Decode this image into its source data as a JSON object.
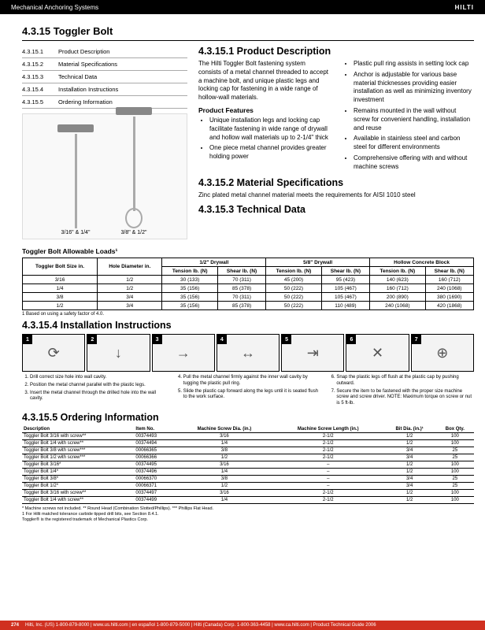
{
  "header": {
    "category": "Mechanical Anchoring Systems",
    "logo": "HILTI"
  },
  "page_title": "4.3.15 Toggler Bolt",
  "toc": [
    {
      "num": "4.3.15.1",
      "label": "Product Description"
    },
    {
      "num": "4.3.15.2",
      "label": "Material Specifications"
    },
    {
      "num": "4.3.15.3",
      "label": "Technical Data"
    },
    {
      "num": "4.3.15.4",
      "label": "Installation Instructions"
    },
    {
      "num": "4.3.15.5",
      "label": "Ordering Information"
    }
  ],
  "diagram": {
    "left": "3/16\" & 1/4\"",
    "right": "3/8\" & 1/2\""
  },
  "section1": {
    "title": "4.3.15.1 Product Description",
    "intro": "The Hilti Toggler Bolt fastening system consists of a metal channel threaded to accept a machine bolt, and unique plastic legs and locking cap for fastening in a wide range of hollow-wall materials.",
    "features_title": "Product Features",
    "left_features": [
      "Unique installation legs and locking cap facilitate fastening in wide range of drywall and hollow wall materials up to 2-1/4\" thick",
      "One piece metal channel provides greater holding power"
    ],
    "right_features": [
      "Plastic pull ring assists in setting lock cap",
      "Anchor is adjustable for various base material thicknesses providing easier installation as well as minimizing inventory investment",
      "Remains mounted in the wall without screw for convenient handling, installation and reuse",
      "Available in stainless steel and carbon steel for different environments",
      "Comprehensive offering with and without machine screws"
    ]
  },
  "section2": {
    "title": "4.3.15.2 Material Specifications",
    "text": "Zinc plated metal channel material meets the requirements for AISI 1010 steel"
  },
  "section3": {
    "title": "4.3.15.3 Technical Data",
    "table_title": "Toggler Bolt Allowable Loads¹",
    "headers": {
      "c1": "Toggler Bolt Size in.",
      "c2": "Hole Diameter in.",
      "g1": "1/2\" Drywall",
      "g2": "5/8\" Drywall",
      "g3": "Hollow Concrete Block",
      "t": "Tension lb. (N)",
      "s": "Shear lb. (N)"
    },
    "rows": [
      {
        "size": "3/16",
        "hole": "1/2",
        "d1t": "30 (133)",
        "d1s": "70 (311)",
        "d2t": "45 (200)",
        "d2s": "95 (423)",
        "ht": "140 (623)",
        "hs": "160 (712)"
      },
      {
        "size": "1/4",
        "hole": "1/2",
        "d1t": "35 (156)",
        "d1s": "85 (378)",
        "d2t": "50 (222)",
        "d2s": "105 (467)",
        "ht": "160 (712)",
        "hs": "240 (1068)"
      },
      {
        "size": "3/8",
        "hole": "3/4",
        "d1t": "35 (156)",
        "d1s": "70 (311)",
        "d2t": "50 (222)",
        "d2s": "105 (467)",
        "ht": "200 (890)",
        "hs": "380 (1690)"
      },
      {
        "size": "1/2",
        "hole": "3/4",
        "d1t": "35 (156)",
        "d1s": "85 (378)",
        "d2t": "50 (222)",
        "d2s": "110 (489)",
        "ht": "240 (1068)",
        "hs": "420 (1868)"
      }
    ],
    "footnote": "1  Based on using a safety factor of 4.0."
  },
  "section4": {
    "title": "4.3.15.4 Installation Instructions",
    "steps_left": [
      "Drill correct size hole into wall cavity.",
      "Position the metal channel parallel with the plastic legs.",
      "Insert the metal channel through the drilled hole into the wall cavity."
    ],
    "steps_mid": [
      "Pull the metal channel firmly against the inner wall cavity by tugging the plastic pull ring.",
      "Slide the plastic cap forward along the legs until it is seated flush to the work surface."
    ],
    "steps_right": [
      "Snap the plastic legs off flush at the plastic cap by pushing outward.",
      "Secure the item to be fastened with the proper size machine screw and screw driver. NOTE: Maximum torque on screw or nut is 5 ft-lb."
    ]
  },
  "section5": {
    "title": "4.3.15.5 Ordering Information",
    "headers": [
      "Description",
      "Item No.",
      "Machine Screw Dia. (in.)",
      "Machine Screw Length (in.)",
      "Bit Dia. (in.)¹",
      "Box Qty."
    ],
    "rows": [
      [
        "Toggler Bolt 3/16 with screw**",
        "00374493",
        "3/16",
        "2-1/2",
        "1/2",
        "100"
      ],
      [
        "Toggler Bolt 1/4 with screw**",
        "00374494",
        "1/4",
        "2-1/2",
        "1/2",
        "100"
      ],
      [
        "Toggler Bolt 3/8 with screw***",
        "00066365",
        "3/8",
        "2-1/2",
        "3/4",
        "25"
      ],
      [
        "Toggler Bolt 1/2 with screw***",
        "00066366",
        "1/2",
        "2-1/2",
        "3/4",
        "25"
      ],
      [
        "Toggler Bolt 3/16*",
        "00374495",
        "3/16",
        "–",
        "1/2",
        "100"
      ],
      [
        "Toggler Bolt 1/4*",
        "00374496",
        "1/4",
        "–",
        "1/2",
        "100"
      ],
      [
        "Toggler Bolt 3/8*",
        "00066370",
        "3/8",
        "–",
        "3/4",
        "25"
      ],
      [
        "Toggler Bolt 1/2*",
        "00066371",
        "1/2",
        "–",
        "3/4",
        "25"
      ],
      [
        "Toggler Bolt 3/16 with screw**",
        "00374497",
        "3/16",
        "2-1/2",
        "1/2",
        "100"
      ],
      [
        "Toggler Bolt 1/4 with screw**",
        "00374499",
        "1/4",
        "2-1/2",
        "1/2",
        "100"
      ]
    ],
    "notes": [
      "* Machine screws not included.   ** Round Head (Combination Slotted/Phillips).   *** Phillips Flat Head.",
      "1  For Hilti matched tolerance carbide tipped drill bits, see Section 8.4.1.",
      "Toggler® is the registered trademark of Mechanical Plastics Corp."
    ]
  },
  "footer": {
    "pgnum": "274",
    "text": "Hilti, Inc. (US) 1-800-879-8000  |  www.us.hilti.com  |  en español 1-800-879-5000  |  Hilti (Canada) Corp. 1-800-363-4458  |  www.ca.hilti.com  |  Product Technical Guide 2006",
    "bar_color": "#ca2b1d"
  }
}
